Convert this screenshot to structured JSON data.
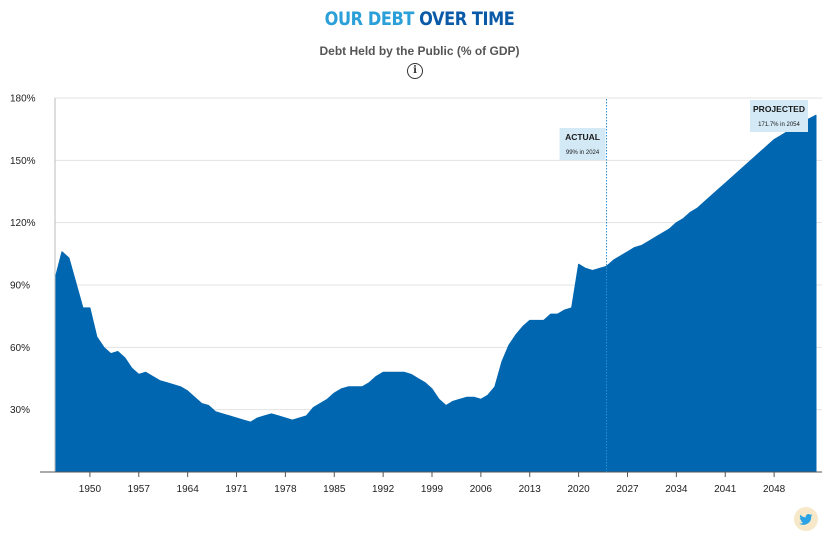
{
  "header": {
    "title_part1": "OUR DEBT",
    "title_part2": "OVER TIME",
    "subtitle": "Debt Held by the Public (% of GDP)",
    "info_icon": "info-icon"
  },
  "footer": {
    "share_icon": "twitter-icon"
  },
  "colors": {
    "area": "#0066b0",
    "title_light": "#2a9fd8",
    "title_dark": "#0a5aa8",
    "callout_bg": "#d3e9f5",
    "divider": "#2a8ed0",
    "grid": "#e3e3e3"
  },
  "chart_data": {
    "type": "area",
    "title": "Debt Held by the Public (% of GDP)",
    "xlabel": "",
    "ylabel": "",
    "xlim": [
      1945,
      2054
    ],
    "ylim": [
      0,
      180
    ],
    "y_ticks": [
      "30%",
      "60%",
      "90%",
      "120%",
      "150%",
      "180%"
    ],
    "y_tick_values": [
      30,
      60,
      90,
      120,
      150,
      180
    ],
    "x_ticks": [
      "1950",
      "1957",
      "1964",
      "1971",
      "1978",
      "1985",
      "1992",
      "1999",
      "2006",
      "2013",
      "2020",
      "2027",
      "2034",
      "2041",
      "2048"
    ],
    "x_tick_values": [
      1950,
      1957,
      1964,
      1971,
      1978,
      1985,
      1992,
      1999,
      2006,
      2013,
      2020,
      2027,
      2034,
      2041,
      2048
    ],
    "grid": true,
    "legend": "none",
    "series": [
      {
        "x": [
          1945,
          1946,
          1947,
          1948,
          1949,
          1950,
          1951,
          1952,
          1953,
          1954,
          1955,
          1956,
          1957,
          1958,
          1959,
          1960,
          1961,
          1962,
          1963,
          1964,
          1965,
          1966,
          1967,
          1968,
          1969,
          1970,
          1971,
          1972,
          1973,
          1974,
          1975,
          1976,
          1977,
          1978,
          1979,
          1980,
          1981,
          1982,
          1983,
          1984,
          1985,
          1986,
          1987,
          1988,
          1989,
          1990,
          1991,
          1992,
          1993,
          1994,
          1995,
          1996,
          1997,
          1998,
          1999,
          2000,
          2001,
          2002,
          2003,
          2004,
          2005,
          2006,
          2007,
          2008,
          2009,
          2010,
          2011,
          2012,
          2013,
          2014,
          2015,
          2016,
          2017,
          2018,
          2019,
          2020,
          2021,
          2022,
          2023,
          2024,
          2025,
          2026,
          2027,
          2028,
          2029,
          2030,
          2031,
          2032,
          2033,
          2034,
          2035,
          2036,
          2037,
          2038,
          2039,
          2040,
          2041,
          2042,
          2043,
          2044,
          2045,
          2046,
          2047,
          2048,
          2049,
          2050,
          2051,
          2052,
          2053,
          2054
        ],
        "values": [
          93,
          106,
          103,
          91,
          79,
          79,
          65,
          60,
          57,
          58,
          55,
          50,
          47,
          48,
          46,
          44,
          43,
          42,
          41,
          39,
          36,
          33,
          32,
          29,
          28,
          27,
          26,
          25,
          24,
          26,
          27,
          28,
          27,
          26,
          25,
          26,
          27,
          31,
          33,
          35,
          38,
          40,
          41,
          41,
          41,
          43,
          46,
          48,
          48,
          48,
          48,
          47,
          45,
          43,
          40,
          35,
          32,
          34,
          35,
          36,
          36,
          35,
          37,
          41,
          53,
          61,
          66,
          70,
          73,
          73,
          73,
          76,
          76,
          78,
          79,
          100,
          98,
          97,
          98,
          99,
          102,
          104,
          106,
          108,
          109,
          111,
          113,
          115,
          117,
          120,
          122,
          125,
          127,
          130,
          133,
          136,
          139,
          142,
          145,
          148,
          151,
          154,
          157,
          160,
          162,
          164,
          166,
          168,
          170,
          171.7
        ]
      }
    ],
    "divider_x": 2024,
    "annotations": [
      {
        "label": "ACTUAL",
        "note": "99% in 2024",
        "x": 2024
      },
      {
        "label": "PROJECTED",
        "note": "171.7% in 2054",
        "x": 2054
      }
    ]
  }
}
